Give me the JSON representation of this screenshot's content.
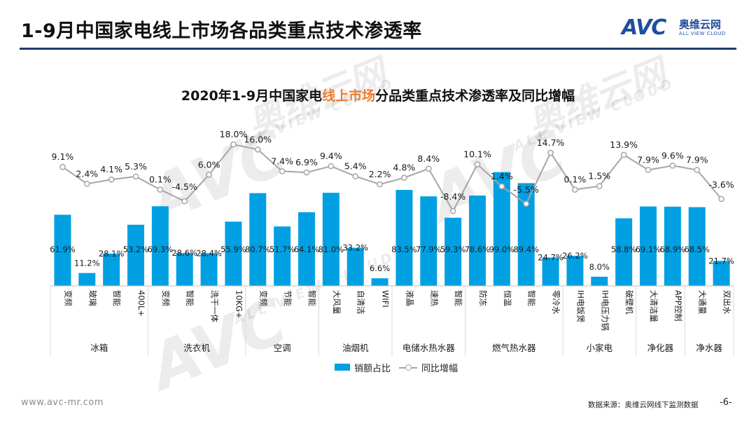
{
  "header": {
    "title": "1-9月中国家电线上市场各品类重点技术渗透率",
    "logo_mark": "AVC",
    "logo_cn": "奥维云网",
    "logo_en": "ALL VIEW CLOUD"
  },
  "watermark": {
    "mark": "AVC",
    "cn": "奥维云网",
    "en": "ALL VIEW CLOUD"
  },
  "chart_title": {
    "part1": "2020年1-9月中国家电",
    "highlight": "线上市场",
    "part2": "分品类重点技术渗透率及同比增幅"
  },
  "chart_data": {
    "type": "bar",
    "title": "2020年1-9月中国家电线上市场分品类重点技术渗透率及同比增幅",
    "categories": [
      "变频",
      "玻璃",
      "智能",
      "400L+",
      "变频",
      "智能",
      "洗干一体",
      "10KG+",
      "变频",
      "节能",
      "智能",
      "大风量",
      "自清洁",
      "WIFI",
      "液晶",
      "速热",
      "智能",
      "防冻",
      "恒温",
      "智能",
      "零冷水",
      "IH电饭煲",
      "IH电压力锅",
      "破壁机",
      "大清洁量",
      "APP控制",
      "大通量",
      "双出水"
    ],
    "groups": [
      {
        "name": "冰箱",
        "count": 4
      },
      {
        "name": "洗衣机",
        "count": 4
      },
      {
        "name": "空调",
        "count": 3
      },
      {
        "name": "油烟机",
        "count": 3
      },
      {
        "name": "电储水热水器",
        "count": 3
      },
      {
        "name": "燃气热水器",
        "count": 4
      },
      {
        "name": "小家电",
        "count": 3
      },
      {
        "name": "净化器",
        "count": 2
      },
      {
        "name": "净水器",
        "count": 2
      }
    ],
    "series": [
      {
        "name": "销额占比",
        "kind": "bar",
        "color": "#00a0e3",
        "values": [
          61.9,
          11.2,
          28.1,
          53.2,
          69.3,
          28.6,
          28.4,
          55.9,
          80.7,
          51.7,
          64.1,
          81.0,
          33.2,
          6.6,
          83.5,
          77.9,
          59.3,
          78.6,
          99.0,
          89.4,
          24.7,
          26.2,
          8.0,
          58.8,
          69.1,
          68.9,
          68.5,
          21.7
        ],
        "labels": [
          "61.9%",
          "11.2%",
          "28.1%",
          "53.2%",
          "69.3%",
          "28.6%",
          "28.4%",
          "55.9%",
          "80.7%",
          "51.7%",
          "64.1%",
          "81.0%",
          "33.2%",
          "6.6%",
          "83.5%",
          "77.9%",
          "59.3%",
          "78.6%",
          "99.0%",
          "89.4%",
          "24.7%",
          "26.2%",
          "8.0%",
          "58.8%",
          "69.1%",
          "68.9%",
          "68.5%",
          "21.7%"
        ]
      },
      {
        "name": "同比增幅",
        "kind": "line",
        "color": "#a6a6a6",
        "values": [
          9.1,
          2.4,
          4.1,
          5.3,
          0.1,
          -4.5,
          6.0,
          18.0,
          16.0,
          7.4,
          6.9,
          9.4,
          5.4,
          2.2,
          4.8,
          8.4,
          -8.4,
          10.1,
          1.4,
          -5.5,
          14.7,
          0.1,
          1.5,
          13.9,
          7.9,
          9.6,
          7.9,
          -3.6
        ],
        "labels": [
          "9.1%",
          "2.4%",
          "4.1%",
          "5.3%",
          "0.1%",
          "-4.5%",
          "6.0%",
          "18.0%",
          "16.0%",
          "7.4%",
          "6.9%",
          "9.4%",
          "5.4%",
          "2.2%",
          "4.8%",
          "8.4%",
          "-8.4%",
          "10.1%",
          "1.4%",
          "-5.5%",
          "14.7%",
          "0.1%",
          "1.5%",
          "13.9%",
          "7.9%",
          "9.6%",
          "7.9%",
          "-3.6%"
        ]
      }
    ],
    "bar_ylim": [
      0,
      120
    ],
    "line_ylim": [
      -40,
      25
    ],
    "legend_position": "bottom-center",
    "grid": false
  },
  "legend": {
    "bar_label": "销额占比",
    "line_label": "同比增幅"
  },
  "footer": {
    "url": "www.avc-mr.com",
    "source": "数据来源：奥维云网线下监测数据",
    "page": "-6-"
  }
}
